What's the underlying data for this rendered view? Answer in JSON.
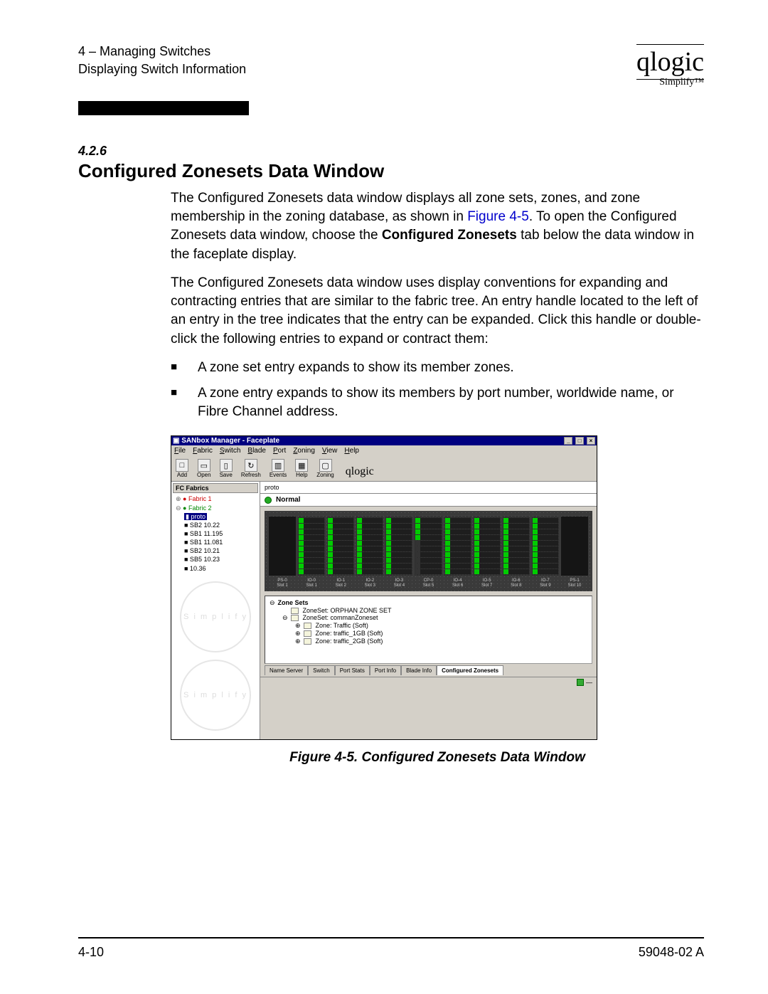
{
  "page": {
    "section_path": "4 – Managing Switches",
    "subsection_path": "Displaying Switch Information",
    "logo_text": "qlogic",
    "logo_sub": "Simplify™",
    "section_number": "4.2.6",
    "heading": "Configured Zonesets Data Window",
    "para1_a": "The Configured Zonesets data window displays all zone sets, zones, and zone membership in the zoning database, as shown in ",
    "para1_link": "Figure 4-5",
    "para1_b": ". To open the Configured Zonesets data window, choose the ",
    "para1_bold": "Configured Zonesets",
    "para1_c": " tab below the data window in the faceplate display.",
    "para2": "The Configured Zonesets data window uses display conventions for expanding and contracting entries that are similar to the fabric tree. An entry handle located to the left of an entry in the tree indicates that the entry can be expanded. Click this handle or double-click the following entries to expand or contract them:",
    "bullet1": "A zone set entry expands to show its member zones.",
    "bullet2": "A zone entry expands to show its members by port number, worldwide name, or Fibre Channel address.",
    "figure_caption": "Figure 4-5.  Configured Zonesets Data Window",
    "footer_left": "4-10",
    "footer_right": "59048-02  A"
  },
  "app": {
    "title": "SANbox Manager - Faceplate",
    "menus": [
      "File",
      "Fabric",
      "Switch",
      "Blade",
      "Port",
      "Zoning",
      "View",
      "Help"
    ],
    "toolbar": [
      {
        "icon": "□",
        "label": "Add"
      },
      {
        "icon": "▭",
        "label": "Open"
      },
      {
        "icon": "▯",
        "label": "Save"
      },
      {
        "icon": "↻",
        "label": "Refresh"
      },
      {
        "icon": "▥",
        "label": "Events"
      },
      {
        "icon": "▦",
        "label": "Help"
      },
      {
        "icon": "▢",
        "label": "Zoning"
      }
    ],
    "toolbar_logo": "qlogic",
    "sidebar": {
      "header": "FC Fabrics",
      "tree": [
        {
          "t": "● Fabric 1",
          "cls": "dot-r",
          "indent": 0,
          "handle": "⊕"
        },
        {
          "t": "● Fabric 2",
          "cls": "dot-g",
          "indent": 0,
          "handle": "⊖"
        },
        {
          "t": "proto",
          "cls": "hl",
          "indent": 1,
          "handle": ""
        },
        {
          "t": "■ SB2 10.22",
          "cls": "",
          "indent": 1,
          "handle": ""
        },
        {
          "t": "■ SB1 11.195",
          "cls": "",
          "indent": 1,
          "handle": ""
        },
        {
          "t": "■ SB1 11.081",
          "cls": "",
          "indent": 1,
          "handle": ""
        },
        {
          "t": "■ SB2 10.21",
          "cls": "",
          "indent": 1,
          "handle": ""
        },
        {
          "t": "■ SB5 10.23",
          "cls": "",
          "indent": 1,
          "handle": ""
        },
        {
          "t": "■ 10.36",
          "cls": "",
          "indent": 1,
          "handle": ""
        }
      ],
      "watermark": "S i m p l i f y"
    },
    "status_switch": "proto",
    "status_text": "Normal",
    "slots": [
      {
        "top": "PS-0",
        "bot": "Slot 1"
      },
      {
        "top": "IO-0",
        "bot": "Slot 1"
      },
      {
        "top": "IO-1",
        "bot": "Slot 2"
      },
      {
        "top": "IO-2",
        "bot": "Slot 3"
      },
      {
        "top": "IO-3",
        "bot": "Slot 4"
      },
      {
        "top": "CP-0",
        "bot": "Slot 5"
      },
      {
        "top": "IO-4",
        "bot": "Slot 6"
      },
      {
        "top": "IO-5",
        "bot": "Slot 7"
      },
      {
        "top": "IO-6",
        "bot": "Slot 8"
      },
      {
        "top": "IO-7",
        "bot": "Slot 9"
      },
      {
        "top": "PS-1",
        "bot": "Slot 10"
      }
    ],
    "blade_pattern": [
      "dark",
      "io",
      "io",
      "io",
      "io",
      "cp",
      "io",
      "io",
      "io",
      "io",
      "dark"
    ],
    "zonesets": {
      "root": "Zone Sets",
      "rows": [
        {
          "indent": 1,
          "handle": "",
          "text": "ZoneSet: ORPHAN ZONE SET"
        },
        {
          "indent": 1,
          "handle": "⊖",
          "text": "ZoneSet: commanZoneset"
        },
        {
          "indent": 2,
          "handle": "⊕",
          "text": "Zone: Traffic (Soft)"
        },
        {
          "indent": 2,
          "handle": "⊕",
          "text": "Zone: traffic_1GB (Soft)"
        },
        {
          "indent": 2,
          "handle": "⊕",
          "text": "Zone: traffic_2GB (Soft)"
        }
      ]
    },
    "tabs": [
      "Name Server",
      "Switch",
      "Port Stats",
      "Port Info",
      "Blade Info",
      "Configured Zonesets"
    ],
    "active_tab": "Configured Zonesets"
  },
  "colors": {
    "titlebar": "#000080",
    "chassis": "#3a3a3a",
    "led_on": "#00cc00",
    "panel": "#d4d0c8"
  }
}
